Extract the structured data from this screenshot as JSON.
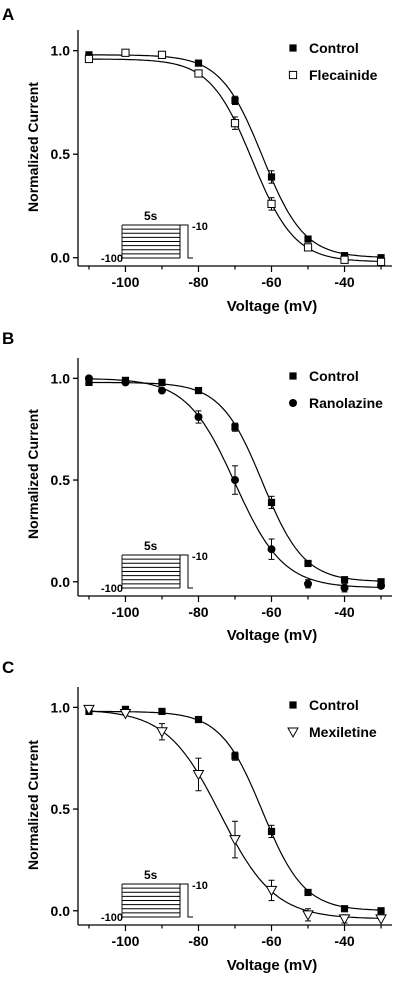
{
  "chart_data": [
    {
      "type": "scatter",
      "panel": "A",
      "xlabel": "Voltage (mV)",
      "ylabel": "Normalized Current",
      "xlim": [
        -113,
        -27
      ],
      "ylim": [
        -0.04,
        1.1
      ],
      "xticks": [
        -100,
        -80,
        -60,
        -40
      ],
      "yticks": [
        0.0,
        0.5,
        1.0
      ],
      "legend_position": "top-right",
      "series": [
        {
          "name": "Control",
          "marker": "filled-square",
          "x": [
            -110,
            -100,
            -90,
            -80,
            -70,
            -60,
            -50,
            -40,
            -30
          ],
          "y": [
            0.98,
            0.99,
            0.98,
            0.94,
            0.76,
            0.39,
            0.09,
            0.01,
            0.0
          ],
          "err": [
            0.01,
            0.01,
            0.01,
            0.01,
            0.02,
            0.03,
            0.01,
            0.01,
            0.01
          ]
        },
        {
          "name": "Flecainide",
          "marker": "open-square",
          "x": [
            -110,
            -100,
            -90,
            -80,
            -70,
            -60,
            -50,
            -40,
            -30
          ],
          "y": [
            0.96,
            0.99,
            0.98,
            0.89,
            0.65,
            0.26,
            0.05,
            -0.01,
            -0.02
          ],
          "err": [
            0.01,
            0.01,
            0.01,
            0.01,
            0.03,
            0.03,
            0.01,
            0.01,
            0.01
          ]
        }
      ],
      "inset": {
        "duration_label": "5s",
        "start_label": "-100",
        "end_label": "-10"
      }
    },
    {
      "type": "scatter",
      "panel": "B",
      "xlabel": "Voltage (mV)",
      "ylabel": "Normalized Current",
      "xlim": [
        -113,
        -27
      ],
      "ylim": [
        -0.07,
        1.1
      ],
      "xticks": [
        -100,
        -80,
        -60,
        -40
      ],
      "yticks": [
        0.0,
        0.5,
        1.0
      ],
      "legend_position": "top-right",
      "series": [
        {
          "name": "Control",
          "marker": "filled-square",
          "x": [
            -110,
            -100,
            -90,
            -80,
            -70,
            -60,
            -50,
            -40,
            -30
          ],
          "y": [
            0.98,
            0.99,
            0.98,
            0.94,
            0.76,
            0.39,
            0.09,
            0.01,
            0.0
          ],
          "err": [
            0.01,
            0.01,
            0.01,
            0.01,
            0.02,
            0.03,
            0.01,
            0.01,
            0.01
          ]
        },
        {
          "name": "Ranolazine",
          "marker": "filled-circle",
          "x": [
            -110,
            -100,
            -90,
            -80,
            -70,
            -60,
            -50,
            -40,
            -30
          ],
          "y": [
            1.0,
            0.98,
            0.94,
            0.81,
            0.5,
            0.16,
            -0.01,
            -0.03,
            -0.02
          ],
          "err": [
            0.01,
            0.01,
            0.01,
            0.03,
            0.07,
            0.05,
            0.02,
            0.02,
            0.01
          ]
        }
      ],
      "inset": {
        "duration_label": "5s",
        "start_label": "-100",
        "end_label": "-10"
      }
    },
    {
      "type": "scatter",
      "panel": "C",
      "xlabel": "Voltage (mV)",
      "ylabel": "Normalized Current",
      "xlim": [
        -113,
        -27
      ],
      "ylim": [
        -0.07,
        1.1
      ],
      "xticks": [
        -100,
        -80,
        -60,
        -40
      ],
      "yticks": [
        0.0,
        0.5,
        1.0
      ],
      "legend_position": "top-right",
      "series": [
        {
          "name": "Control",
          "marker": "filled-square",
          "x": [
            -110,
            -100,
            -90,
            -80,
            -70,
            -60,
            -50,
            -40,
            -30
          ],
          "y": [
            0.98,
            0.99,
            0.98,
            0.94,
            0.76,
            0.39,
            0.09,
            0.01,
            0.0
          ],
          "err": [
            0.01,
            0.01,
            0.01,
            0.01,
            0.02,
            0.03,
            0.01,
            0.01,
            0.01
          ]
        },
        {
          "name": "Mexiletine",
          "marker": "open-triangle-down",
          "x": [
            -110,
            -100,
            -90,
            -80,
            -70,
            -60,
            -50,
            -40,
            -30
          ],
          "y": [
            0.99,
            0.97,
            0.88,
            0.67,
            0.35,
            0.1,
            -0.02,
            -0.04,
            -0.04
          ],
          "err": [
            0.01,
            0.01,
            0.04,
            0.08,
            0.09,
            0.05,
            0.03,
            0.02,
            0.01
          ]
        }
      ],
      "inset": {
        "duration_label": "5s",
        "start_label": "-100",
        "end_label": "-10"
      }
    }
  ]
}
